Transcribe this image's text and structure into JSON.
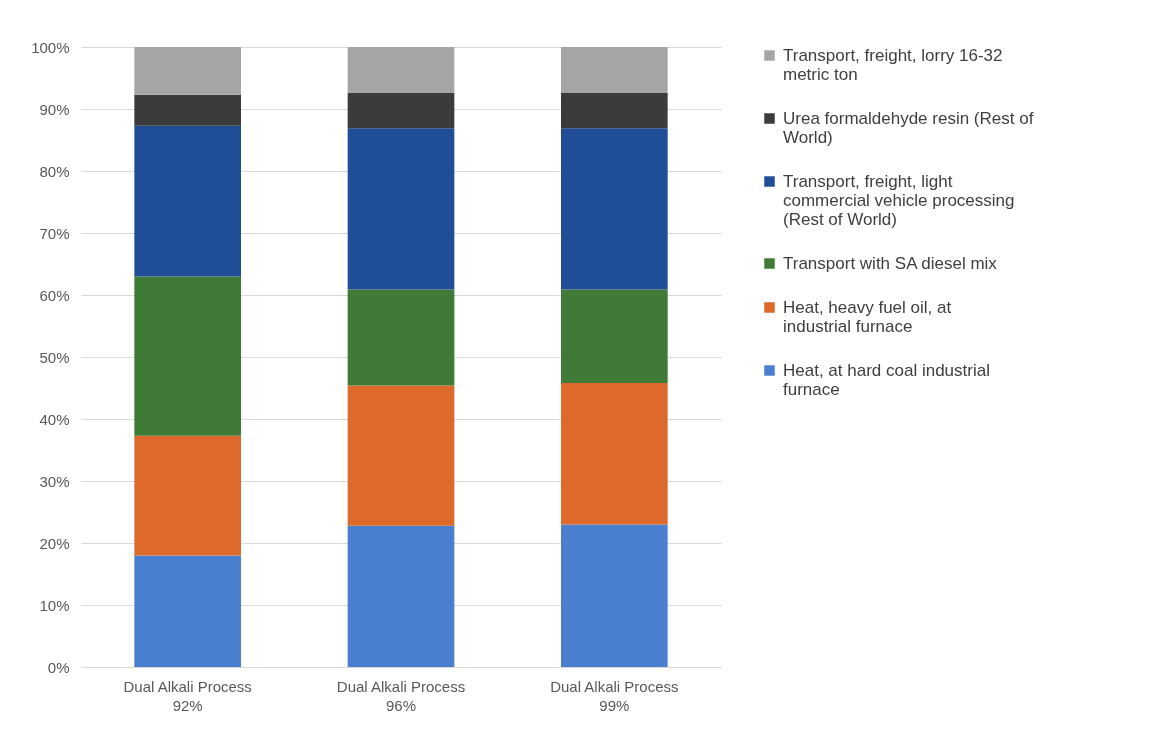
{
  "chart_data": {
    "type": "bar",
    "stacked": true,
    "categories": [
      "Dual Alkali Process 92%",
      "Dual Alkali Process 96%",
      "Dual Alkali Process 99%"
    ],
    "series": [
      {
        "name": "Heat,  at hard coal industrial furnace",
        "color": "#4a7fcf",
        "values": [
          18.0,
          22.8,
          23.0
        ]
      },
      {
        "name": "Heat,  heavy fuel oil, at industrial furnace",
        "color": "#dd6a2a",
        "values": [
          19.3,
          22.6,
          22.8
        ]
      },
      {
        "name": "Transport with SA diesel mix",
        "color": "#3f7a37",
        "values": [
          25.7,
          15.5,
          15.1
        ]
      },
      {
        "name": "Transport, freight, light commercial vehicle  processing (Rest of World)",
        "color": "#1f4e96",
        "values": [
          24.3,
          26.0,
          26.0
        ]
      },
      {
        "name": "Urea formaldehyde resin (Rest of World)",
        "color": "#3b3b3b",
        "values": [
          5.0,
          5.7,
          5.7
        ]
      },
      {
        "name": "Transport, freight, lorry 16-32 metric ton",
        "color": "#a5a5a5",
        "values": [
          7.7,
          7.4,
          7.4
        ]
      }
    ],
    "ylim": [
      0,
      100
    ],
    "yticks": [
      {
        "value": 0,
        "label": "0%"
      },
      {
        "value": 10,
        "label": "10%"
      },
      {
        "value": 20,
        "label": "20%"
      },
      {
        "value": 30,
        "label": "30%"
      },
      {
        "value": 40,
        "label": "40%"
      },
      {
        "value": 50,
        "label": "50%"
      },
      {
        "value": 60,
        "label": "60%"
      },
      {
        "value": 70,
        "label": "70%"
      },
      {
        "value": 80,
        "label": "80%"
      },
      {
        "value": 90,
        "label": "90%"
      },
      {
        "value": 100,
        "label": "100%"
      }
    ],
    "grid": "y",
    "legend": "right"
  }
}
